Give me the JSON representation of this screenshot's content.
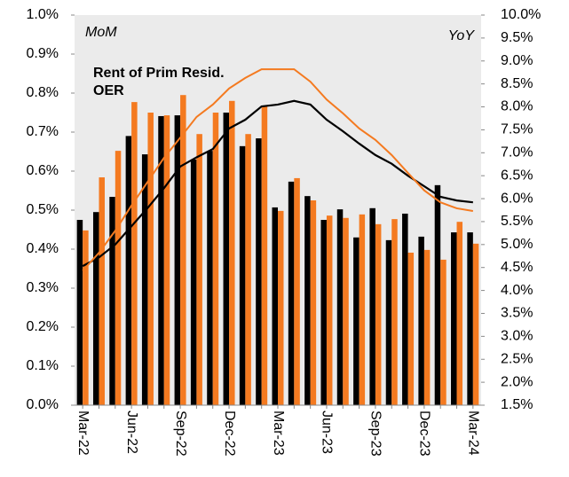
{
  "chart_data": {
    "type": "bar-line",
    "y_label": "MoM",
    "y2_label": "YoY",
    "categories": [
      "Mar-22",
      null,
      null,
      "Jun-22",
      null,
      null,
      "Sep-22",
      null,
      null,
      "Dec-22",
      null,
      null,
      "Mar-23",
      null,
      null,
      "Jun-23",
      null,
      null,
      "Sep-23",
      null,
      null,
      "Dec-23",
      null,
      null,
      "Mar-24"
    ],
    "series": [
      {
        "name": "OER",
        "color": "#000000",
        "values": [
          0.475,
          0.495,
          0.534,
          0.69,
          0.643,
          0.741,
          0.743,
          0.63,
          0.652,
          0.75,
          0.664,
          0.684,
          0.507,
          0.573,
          0.536,
          0.475,
          0.502,
          0.43,
          0.505,
          0.423,
          0.491,
          0.432,
          0.564,
          0.443,
          0.443
        ],
        "y2_values": [
          4.53,
          4.72,
          5.0,
          5.4,
          5.8,
          6.23,
          6.7,
          6.9,
          7.08,
          7.53,
          7.72,
          8.01,
          8.05,
          8.13,
          8.05,
          7.72,
          7.47,
          7.2,
          6.95,
          6.76,
          6.5,
          6.27,
          6.04,
          5.96,
          5.92
        ]
      },
      {
        "name": "Rent of Prim Resid.",
        "color": "#f47a20",
        "values": [
          0.448,
          0.584,
          0.652,
          0.777,
          0.75,
          0.743,
          0.795,
          0.695,
          0.75,
          0.78,
          0.695,
          0.768,
          0.498,
          0.582,
          0.525,
          0.486,
          0.48,
          0.489,
          0.464,
          0.477,
          0.391,
          0.398,
          0.373,
          0.47,
          0.414
        ],
        "y2_values": [
          4.43,
          4.82,
          5.3,
          5.85,
          6.37,
          6.89,
          7.33,
          7.78,
          8.05,
          8.4,
          8.63,
          8.82,
          8.82,
          8.82,
          8.55,
          8.16,
          7.86,
          7.53,
          7.28,
          6.95,
          6.56,
          6.18,
          5.92,
          5.79,
          5.73
        ]
      }
    ],
    "ylim": [
      0,
      1.0
    ],
    "yticks": [
      {
        "value": 0,
        "label": "0.0%"
      },
      {
        "value": 0.1,
        "label": "0.1%"
      },
      {
        "value": 0.2,
        "label": "0.2%"
      },
      {
        "value": 0.3,
        "label": "0.3%"
      },
      {
        "value": 0.4,
        "label": "0.4%"
      },
      {
        "value": 0.5,
        "label": "0.5%"
      },
      {
        "value": 0.6,
        "label": "0.6%"
      },
      {
        "value": 0.7,
        "label": "0.7%"
      },
      {
        "value": 0.8,
        "label": "0.8%"
      },
      {
        "value": 0.9,
        "label": "0.9%"
      },
      {
        "value": 1.0,
        "label": "1.0%"
      }
    ],
    "y2lim": [
      1.5,
      10.0
    ],
    "y2ticks": [
      {
        "value": 1.5,
        "label": "1.5%"
      },
      {
        "value": 2.0,
        "label": "2.0%"
      },
      {
        "value": 2.5,
        "label": "2.5%"
      },
      {
        "value": 3.0,
        "label": "3.0%"
      },
      {
        "value": 3.5,
        "label": "3.5%"
      },
      {
        "value": 4.0,
        "label": "4.0%"
      },
      {
        "value": 4.5,
        "label": "4.5%"
      },
      {
        "value": 5.0,
        "label": "5.0%"
      },
      {
        "value": 5.5,
        "label": "5.5%"
      },
      {
        "value": 6.0,
        "label": "6.0%"
      },
      {
        "value": 6.5,
        "label": "6.5%"
      },
      {
        "value": 7.0,
        "label": "7.0%"
      },
      {
        "value": 7.5,
        "label": "7.5%"
      },
      {
        "value": 8.0,
        "label": "8.0%"
      },
      {
        "value": 8.5,
        "label": "8.5%"
      },
      {
        "value": 9.0,
        "label": "9.0%"
      },
      {
        "value": 9.5,
        "label": "9.5%"
      },
      {
        "value": 10.0,
        "label": "10.0%"
      }
    ],
    "grid": false
  }
}
